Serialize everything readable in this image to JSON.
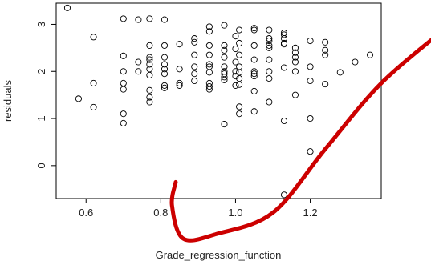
{
  "chart_data": {
    "type": "scatter",
    "title": "",
    "xlabel": "Grade_regression_function",
    "ylabel": "residuals",
    "xlim": [
      0.52,
      1.39
    ],
    "ylim": [
      -0.7,
      3.45
    ],
    "x_ticks": [
      0.6,
      0.8,
      1.0,
      1.2
    ],
    "x_tick_labels": [
      "0.6",
      "0.8",
      "1.0",
      "1.2"
    ],
    "y_ticks": [
      0,
      1,
      2,
      3
    ],
    "y_tick_labels": [
      "0",
      "1",
      "2",
      "3"
    ],
    "grid": false,
    "legend": "none",
    "marker": "open-circle",
    "marker_color": "#000000",
    "annotation": {
      "type": "freehand-check-stroke",
      "color": "#cc0000",
      "points": [
        [
          0.84,
          -0.35
        ],
        [
          0.83,
          -0.85
        ],
        [
          0.86,
          -1.55
        ],
        [
          0.95,
          -1.45
        ],
        [
          1.1,
          -1.0
        ],
        [
          1.24,
          0.35
        ],
        [
          1.39,
          1.75
        ],
        [
          1.56,
          2.9
        ]
      ]
    },
    "points": [
      [
        0.55,
        3.35
      ],
      [
        0.58,
        1.42
      ],
      [
        0.62,
        2.73
      ],
      [
        0.62,
        1.75
      ],
      [
        0.62,
        1.24
      ],
      [
        0.7,
        3.12
      ],
      [
        0.7,
        2.33
      ],
      [
        0.7,
        2.0
      ],
      [
        0.7,
        1.75
      ],
      [
        0.7,
        1.62
      ],
      [
        0.7,
        1.1
      ],
      [
        0.7,
        0.9
      ],
      [
        0.74,
        3.1
      ],
      [
        0.74,
        2.2
      ],
      [
        0.74,
        2.0
      ],
      [
        0.77,
        3.12
      ],
      [
        0.77,
        2.55
      ],
      [
        0.77,
        2.3
      ],
      [
        0.77,
        2.25
      ],
      [
        0.77,
        2.15
      ],
      [
        0.77,
        2.05
      ],
      [
        0.77,
        1.92
      ],
      [
        0.77,
        1.6
      ],
      [
        0.77,
        1.45
      ],
      [
        0.77,
        1.35
      ],
      [
        0.81,
        3.1
      ],
      [
        0.81,
        2.55
      ],
      [
        0.81,
        2.3
      ],
      [
        0.81,
        2.15
      ],
      [
        0.81,
        2.05
      ],
      [
        0.81,
        1.95
      ],
      [
        0.81,
        1.7
      ],
      [
        0.81,
        1.65
      ],
      [
        0.85,
        2.58
      ],
      [
        0.85,
        2.05
      ],
      [
        0.85,
        1.75
      ],
      [
        0.85,
        1.7
      ],
      [
        0.89,
        2.7
      ],
      [
        0.89,
        2.62
      ],
      [
        0.89,
        2.35
      ],
      [
        0.89,
        2.1
      ],
      [
        0.89,
        1.95
      ],
      [
        0.89,
        1.8
      ],
      [
        0.93,
        2.95
      ],
      [
        0.93,
        2.85
      ],
      [
        0.93,
        2.55
      ],
      [
        0.93,
        2.35
      ],
      [
        0.93,
        2.15
      ],
      [
        0.93,
        2.1
      ],
      [
        0.93,
        1.98
      ],
      [
        0.93,
        1.75
      ],
      [
        0.93,
        1.68
      ],
      [
        0.93,
        1.62
      ],
      [
        0.97,
        2.98
      ],
      [
        0.97,
        2.55
      ],
      [
        0.97,
        2.45
      ],
      [
        0.97,
        2.3
      ],
      [
        0.97,
        2.1
      ],
      [
        0.97,
        2.0
      ],
      [
        0.97,
        1.95
      ],
      [
        0.97,
        1.88
      ],
      [
        0.97,
        1.82
      ],
      [
        0.97,
        0.88
      ],
      [
        1.0,
        2.75
      ],
      [
        1.0,
        2.48
      ],
      [
        1.0,
        2.2
      ],
      [
        1.0,
        2.0
      ],
      [
        1.0,
        1.9
      ],
      [
        1.0,
        1.7
      ],
      [
        1.01,
        2.88
      ],
      [
        1.01,
        2.6
      ],
      [
        1.01,
        2.35
      ],
      [
        1.01,
        2.1
      ],
      [
        1.01,
        1.98
      ],
      [
        1.01,
        1.85
      ],
      [
        1.01,
        1.72
      ],
      [
        1.01,
        1.25
      ],
      [
        1.01,
        1.1
      ],
      [
        1.05,
        2.92
      ],
      [
        1.05,
        2.88
      ],
      [
        1.05,
        2.55
      ],
      [
        1.05,
        2.25
      ],
      [
        1.05,
        2.0
      ],
      [
        1.05,
        1.95
      ],
      [
        1.05,
        1.9
      ],
      [
        1.05,
        1.58
      ],
      [
        1.05,
        1.15
      ],
      [
        1.09,
        2.88
      ],
      [
        1.09,
        2.7
      ],
      [
        1.09,
        2.65
      ],
      [
        1.09,
        2.55
      ],
      [
        1.09,
        2.5
      ],
      [
        1.09,
        2.25
      ],
      [
        1.09,
        2.0
      ],
      [
        1.09,
        1.85
      ],
      [
        1.09,
        1.35
      ],
      [
        1.13,
        2.82
      ],
      [
        1.13,
        2.78
      ],
      [
        1.13,
        2.7
      ],
      [
        1.13,
        2.6
      ],
      [
        1.13,
        2.58
      ],
      [
        1.13,
        2.08
      ],
      [
        1.13,
        0.95
      ],
      [
        1.13,
        -0.62
      ],
      [
        1.16,
        2.5
      ],
      [
        1.16,
        2.4
      ],
      [
        1.16,
        2.3
      ],
      [
        1.16,
        2.2
      ],
      [
        1.16,
        2.0
      ],
      [
        1.16,
        1.5
      ],
      [
        1.2,
        2.65
      ],
      [
        1.2,
        2.1
      ],
      [
        1.2,
        1.8
      ],
      [
        1.2,
        1.0
      ],
      [
        1.2,
        0.3
      ],
      [
        1.24,
        2.62
      ],
      [
        1.24,
        2.45
      ],
      [
        1.24,
        2.35
      ],
      [
        1.24,
        1.73
      ],
      [
        1.28,
        1.98
      ],
      [
        1.32,
        2.2
      ],
      [
        1.36,
        2.35
      ]
    ]
  }
}
